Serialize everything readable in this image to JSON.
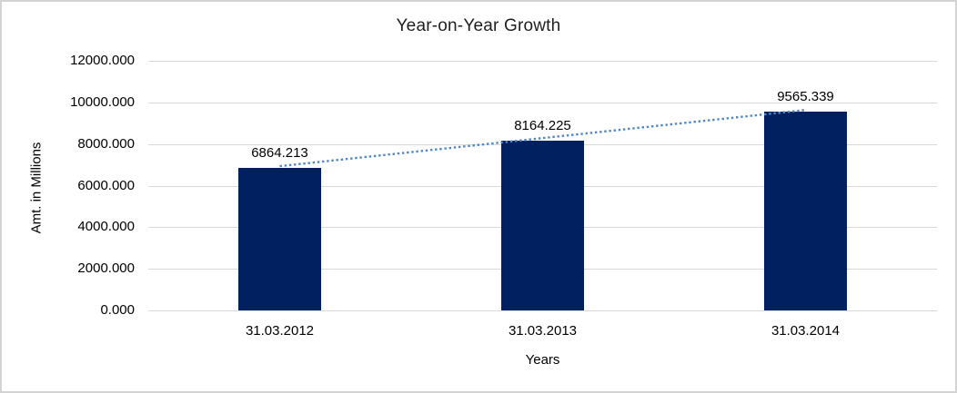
{
  "window": {
    "background": "#FFFFFF",
    "border_color": "#D3D3D3"
  },
  "chart_data": {
    "type": "bar",
    "title": "Year-on-Year Growth",
    "xlabel": "Years",
    "ylabel": "Amt. in Millions",
    "categories": [
      "31.03.2012",
      "31.03.2013",
      "31.03.2014"
    ],
    "values": [
      6864.213,
      8164.225,
      9565.339
    ],
    "data_labels": [
      "6864.213",
      "8164.225",
      "9565.339"
    ],
    "yticks": [
      "0.000",
      "2000.000",
      "4000.000",
      "6000.000",
      "8000.000",
      "10000.000",
      "12000.000"
    ],
    "ylim": [
      0,
      12000
    ],
    "grid": true,
    "legend": false,
    "trendline": {
      "type": "linear",
      "style": "dotted",
      "color": "#4F87C8"
    },
    "colors": {
      "bar": "#002060",
      "gridline": "#D9D9D9",
      "axis_text": "#000000",
      "title_text": "#1F1F1F"
    }
  }
}
